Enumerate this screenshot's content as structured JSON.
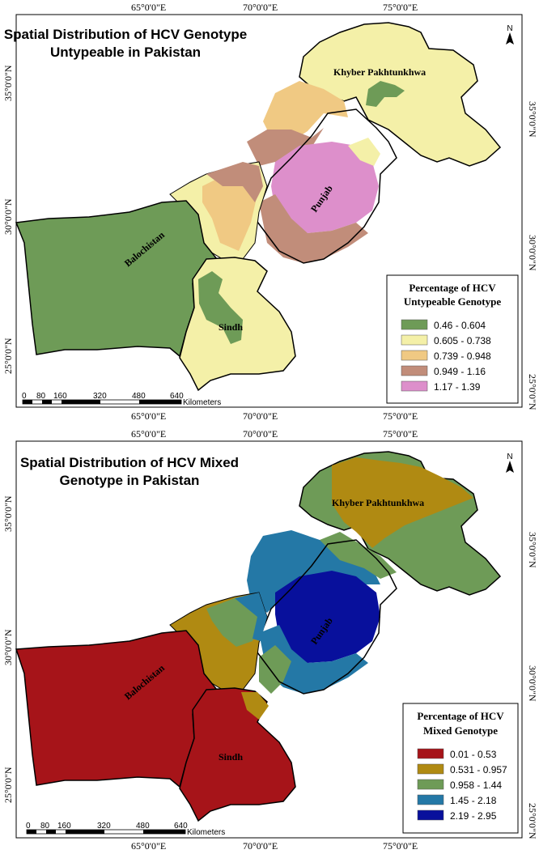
{
  "maps": [
    {
      "title_line1": "Spatial Distribution of HCV Genotype",
      "title_line2": "Untypeable in Pakistan",
      "legend_title_line1": "Percentage of HCV",
      "legend_title_line2": "Untypeable Genotype",
      "legend": [
        {
          "label": "0.46 - 0.604",
          "color": "#6e9b57"
        },
        {
          "label": "0.605 - 0.738",
          "color": "#f4f0a8"
        },
        {
          "label": "0.739 - 0.948",
          "color": "#f0c983"
        },
        {
          "label": "0.949 - 1.16",
          "color": "#c18d7a"
        },
        {
          "label": "1.17 - 1.39",
          "color": "#dd8fcb"
        }
      ]
    },
    {
      "title_line1": "Spatial Distribution of HCV Mixed",
      "title_line2": "Genotype in Pakistan",
      "legend_title_line1": "Percentage of HCV",
      "legend_title_line2": "Mixed Genotype",
      "legend": [
        {
          "label": "0.01 - 0.53",
          "color": "#a61419"
        },
        {
          "label": "0.531 - 0.957",
          "color": "#b08a12"
        },
        {
          "label": "0.958 - 1.44",
          "color": "#6e9b57"
        },
        {
          "label": "1.45 - 2.18",
          "color": "#2478a6"
        },
        {
          "label": "2.19 - 2.95",
          "color": "#08109c"
        }
      ]
    }
  ],
  "regions": {
    "khyber": "Khyber Pakhtunkhwa",
    "punjab": "Punjab",
    "balochistan": "Balochistan",
    "sindh": "Sindh"
  },
  "longitude_labels": [
    "65°0'0\"E",
    "70°0'0\"E",
    "75°0'0\"E"
  ],
  "latitude_labels": [
    "35°0'0\"N",
    "30°0'0\"N",
    "25°0'0\"N"
  ],
  "scale": {
    "ticks": [
      "0",
      "80",
      "160",
      "320",
      "480",
      "640"
    ],
    "unit": "Kilometers"
  },
  "north_label": "N"
}
